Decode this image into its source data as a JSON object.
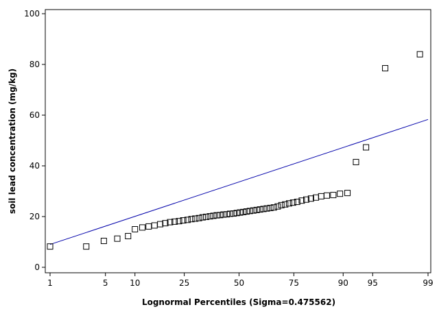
{
  "chart_data": {
    "type": "scatter",
    "title": "",
    "xlabel": "Lognormal Percentiles (Sigma=0.475562)",
    "ylabel": "soil lead concentration (mg/kg)",
    "x_scale": "normal-probability",
    "ylim": [
      0,
      100
    ],
    "y_ticks": [
      0,
      20,
      40,
      60,
      80,
      100
    ],
    "x_ticks": [
      1,
      5,
      10,
      25,
      50,
      75,
      90,
      95,
      99
    ],
    "grid": false,
    "legend": "none",
    "colors": {
      "points": "#000000",
      "fit_line": "#0000aa"
    },
    "fit_line": {
      "x": [
        1,
        99
      ],
      "y": [
        9,
        58.3
      ]
    },
    "points": [
      {
        "x": 1.0,
        "y": 8.2
      },
      {
        "x": 3.0,
        "y": 8.2
      },
      {
        "x": 4.8,
        "y": 10.4
      },
      {
        "x": 6.7,
        "y": 11.3
      },
      {
        "x": 8.6,
        "y": 12.3
      },
      {
        "x": 10.0,
        "y": 15.0
      },
      {
        "x": 11.7,
        "y": 15.7
      },
      {
        "x": 13.3,
        "y": 16.1
      },
      {
        "x": 14.9,
        "y": 16.5
      },
      {
        "x": 16.6,
        "y": 17.0
      },
      {
        "x": 18.2,
        "y": 17.4
      },
      {
        "x": 19.8,
        "y": 17.8
      },
      {
        "x": 21.4,
        "y": 18.0
      },
      {
        "x": 23.0,
        "y": 18.2
      },
      {
        "x": 24.6,
        "y": 18.5
      },
      {
        "x": 26.3,
        "y": 18.7
      },
      {
        "x": 27.9,
        "y": 19.0
      },
      {
        "x": 29.5,
        "y": 19.2
      },
      {
        "x": 31.1,
        "y": 19.4
      },
      {
        "x": 32.7,
        "y": 19.7
      },
      {
        "x": 34.3,
        "y": 19.9
      },
      {
        "x": 36.0,
        "y": 20.1
      },
      {
        "x": 37.6,
        "y": 20.3
      },
      {
        "x": 39.2,
        "y": 20.5
      },
      {
        "x": 40.8,
        "y": 20.6
      },
      {
        "x": 42.4,
        "y": 20.8
      },
      {
        "x": 44.0,
        "y": 20.9
      },
      {
        "x": 45.6,
        "y": 21.1
      },
      {
        "x": 47.3,
        "y": 21.2
      },
      {
        "x": 48.9,
        "y": 21.4
      },
      {
        "x": 50.5,
        "y": 21.6
      },
      {
        "x": 52.1,
        "y": 21.8
      },
      {
        "x": 53.7,
        "y": 22.0
      },
      {
        "x": 55.3,
        "y": 22.2
      },
      {
        "x": 57.0,
        "y": 22.4
      },
      {
        "x": 58.6,
        "y": 22.6
      },
      {
        "x": 60.2,
        "y": 22.8
      },
      {
        "x": 61.8,
        "y": 23.0
      },
      {
        "x": 63.4,
        "y": 23.2
      },
      {
        "x": 65.0,
        "y": 23.4
      },
      {
        "x": 66.6,
        "y": 23.6
      },
      {
        "x": 68.3,
        "y": 24.0
      },
      {
        "x": 69.9,
        "y": 24.5
      },
      {
        "x": 71.5,
        "y": 24.8
      },
      {
        "x": 73.1,
        "y": 25.2
      },
      {
        "x": 74.7,
        "y": 25.5
      },
      {
        "x": 76.3,
        "y": 25.8
      },
      {
        "x": 78.0,
        "y": 26.3
      },
      {
        "x": 79.6,
        "y": 26.7
      },
      {
        "x": 81.2,
        "y": 27.1
      },
      {
        "x": 82.8,
        "y": 27.5
      },
      {
        "x": 84.4,
        "y": 28.0
      },
      {
        "x": 86.0,
        "y": 28.3
      },
      {
        "x": 87.7,
        "y": 28.5
      },
      {
        "x": 89.3,
        "y": 29.0
      },
      {
        "x": 90.9,
        "y": 29.3
      },
      {
        "x": 92.5,
        "y": 41.5
      },
      {
        "x": 94.1,
        "y": 47.3
      },
      {
        "x": 96.4,
        "y": 78.5
      },
      {
        "x": 98.7,
        "y": 84.0
      }
    ]
  }
}
